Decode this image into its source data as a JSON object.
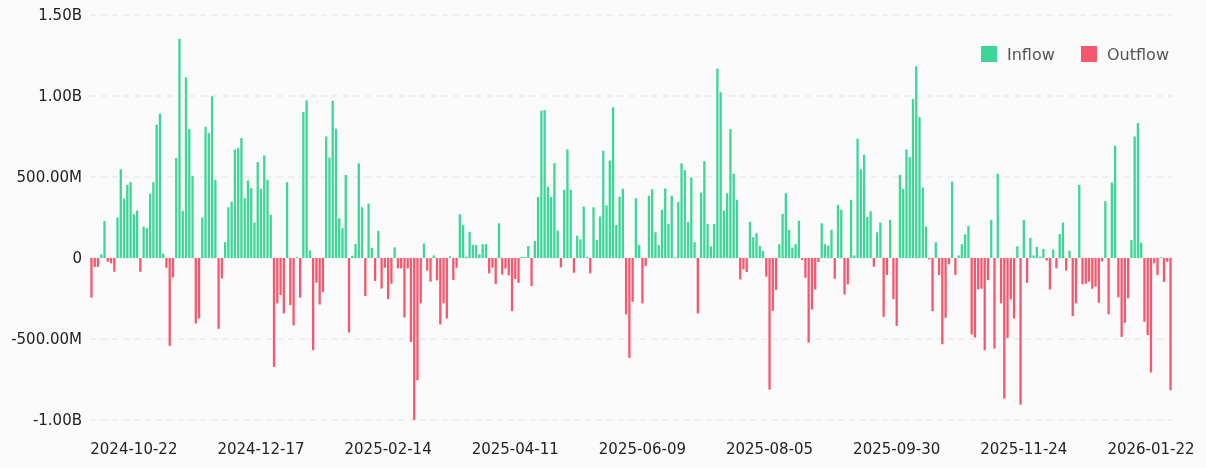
{
  "chart_data": {
    "type": "bar",
    "grid": "y",
    "legend": "top right",
    "ylim": [
      -1000000000.0,
      1500000000.0
    ],
    "yticks": [
      {
        "value": -1000000000.0,
        "label": "-1.00B"
      },
      {
        "value": -500000000.0,
        "label": "-500.00M"
      },
      {
        "value": 0,
        "label": "0"
      },
      {
        "value": 500000000.0,
        "label": "500.00M"
      },
      {
        "value": 1000000000.0,
        "label": "1.00B"
      },
      {
        "value": 1500000000.0,
        "label": "1.50B"
      }
    ],
    "categories": [
      null,
      null,
      null,
      null,
      null,
      null,
      null,
      null,
      null,
      null,
      null,
      null,
      null,
      "2024-10-22",
      null,
      null,
      null,
      null,
      null,
      null,
      null,
      null,
      null,
      null,
      null,
      null,
      null,
      null,
      null,
      null,
      null,
      null,
      null,
      null,
      null,
      null,
      null,
      null,
      null,
      null,
      null,
      null,
      null,
      null,
      null,
      null,
      null,
      null,
      null,
      null,
      null,
      null,
      "2024-12-17",
      null,
      null,
      null,
      null,
      null,
      null,
      null,
      null,
      null,
      null,
      null,
      null,
      null,
      null,
      null,
      null,
      null,
      null,
      null,
      null,
      null,
      null,
      null,
      null,
      null,
      null,
      null,
      null,
      null,
      null,
      null,
      null,
      null,
      null,
      null,
      null,
      null,
      null,
      "2025-02-14",
      null,
      null,
      null,
      null,
      null,
      null,
      null,
      null,
      null,
      null,
      null,
      null,
      null,
      null,
      null,
      null,
      null,
      null,
      null,
      null,
      null,
      null,
      null,
      null,
      null,
      null,
      null,
      null,
      null,
      null,
      null,
      null,
      null,
      null,
      null,
      null,
      null,
      null,
      "2025-04-11",
      null,
      null,
      null,
      null,
      null,
      null,
      null,
      null,
      null,
      null,
      null,
      null,
      null,
      null,
      null,
      null,
      null,
      null,
      null,
      null,
      null,
      null,
      null,
      null,
      null,
      null,
      null,
      null,
      null,
      null,
      null,
      null,
      null,
      null,
      null,
      null,
      null,
      null,
      "2025-06-09",
      null,
      null,
      null,
      null,
      null,
      null,
      null,
      null,
      null,
      null,
      null,
      null,
      null,
      null,
      null,
      null,
      null,
      null,
      null,
      null,
      null,
      null,
      null,
      null,
      null,
      null,
      null,
      null,
      null,
      null,
      null,
      null,
      null,
      null,
      null,
      null,
      null,
      null,
      "2025-08-05",
      null,
      null,
      null,
      null,
      null,
      null,
      null,
      null,
      null,
      null,
      null,
      null,
      null,
      null,
      null,
      null,
      null,
      null,
      null,
      null,
      null,
      null,
      null,
      null,
      null,
      null,
      null,
      null,
      null,
      null,
      null,
      null,
      null,
      null,
      null,
      null,
      null,
      null,
      "2025-09-30",
      null,
      null,
      null,
      null,
      null,
      null,
      null,
      null,
      null,
      null,
      null,
      null,
      null,
      null,
      null,
      null,
      null,
      null,
      null,
      null,
      null,
      null,
      null,
      null,
      null,
      null,
      null,
      null,
      null,
      null,
      null,
      null,
      null,
      null,
      null,
      null,
      null,
      null,
      "2025-11-24",
      null,
      null,
      null,
      null,
      null,
      null,
      null,
      null,
      null,
      null,
      null,
      null,
      null,
      null,
      null,
      null,
      null,
      null,
      null,
      null,
      null,
      null,
      null,
      null,
      null,
      null,
      null,
      null,
      null,
      null,
      null,
      null,
      null,
      null,
      null,
      null,
      null,
      null,
      "2026-01-22",
      null,
      null,
      null,
      null,
      null,
      null
    ],
    "series": [
      {
        "name": "Inflow",
        "color": "#3dd598",
        "values": [
          null,
          null,
          null,
          23000000.0,
          229000000.0,
          null,
          null,
          null,
          250000000.0,
          548000000.0,
          367000000.0,
          452000000.0,
          468000000.0,
          270000000.0,
          293000000.0,
          null,
          194000000.0,
          184000000.0,
          396000000.0,
          468000000.0,
          823000000.0,
          891000000.0,
          27000000.0,
          null,
          null,
          null,
          617000000.0,
          1353000000.0,
          291000000.0,
          1115000000.0,
          796000000.0,
          505000000.0,
          null,
          null,
          250000000.0,
          810000000.0,
          771000000.0,
          998000000.0,
          482000000.0,
          null,
          null,
          97000000.0,
          313000000.0,
          348000000.0,
          670000000.0,
          678000000.0,
          740000000.0,
          369000000.0,
          478000000.0,
          431000000.0,
          219000000.0,
          592000000.0,
          427000000.0,
          633000000.0,
          482000000.0,
          266000000.0,
          null,
          null,
          null,
          null,
          468000000.0,
          null,
          null,
          6000000.0,
          null,
          901000000.0,
          973000000.0,
          47000000.0,
          null,
          null,
          null,
          null,
          750000000.0,
          620000000.0,
          971000000.0,
          798000000.0,
          245000000.0,
          184000000.0,
          513000000.0,
          null,
          14000000.0,
          87000000.0,
          584000000.0,
          313000000.0,
          null,
          336000000.0,
          62000000.0,
          null,
          167000000.0,
          null,
          null,
          null,
          null,
          66000000.0,
          null,
          null,
          null,
          null,
          null,
          null,
          null,
          null,
          89000000.0,
          null,
          null,
          16000000.0,
          null,
          null,
          null,
          null,
          10000000.0,
          null,
          null,
          270000000.0,
          204000000.0,
          8000000.0,
          161000000.0,
          80000000.0,
          80000000.0,
          23000000.0,
          85000000.0,
          85000000.0,
          null,
          null,
          null,
          214000000.0,
          null,
          null,
          null,
          null,
          null,
          null,
          6000000.0,
          6000000.0,
          74000000.0,
          null,
          105000000.0,
          377000000.0,
          909000000.0,
          913000000.0,
          439000000.0,
          377000000.0,
          586000000.0,
          169000000.0,
          null,
          421000000.0,
          670000000.0,
          421000000.0,
          null,
          138000000.0,
          115000000.0,
          318000000.0,
          6000000.0,
          null,
          313000000.0,
          111000000.0,
          256000000.0,
          662000000.0,
          324000000.0,
          602000000.0,
          930000000.0,
          204000000.0,
          379000000.0,
          427000000.0,
          null,
          null,
          null,
          369000000.0,
          80000000.0,
          null,
          null,
          384000000.0,
          425000000.0,
          159000000.0,
          80000000.0,
          297000000.0,
          429000000.0,
          210000000.0,
          384000000.0,
          4000000.0,
          346000000.0,
          584000000.0,
          542000000.0,
          223000000.0,
          497000000.0,
          97000000.0,
          null,
          404000000.0,
          598000000.0,
          210000000.0,
          72000000.0,
          210000000.0,
          1169000000.0,
          1023000000.0,
          293000000.0,
          400000000.0,
          796000000.0,
          520000000.0,
          359000000.0,
          null,
          null,
          null,
          223000000.0,
          128000000.0,
          153000000.0,
          74000000.0,
          43000000.0,
          null,
          null,
          null,
          null,
          85000000.0,
          272000000.0,
          400000000.0,
          173000000.0,
          64000000.0,
          85000000.0,
          229000000.0,
          null,
          null,
          null,
          null,
          null,
          null,
          214000000.0,
          85000000.0,
          76000000.0,
          175000000.0,
          null,
          328000000.0,
          297000000.0,
          null,
          null,
          359000000.0,
          16000000.0,
          736000000.0,
          548000000.0,
          637000000.0,
          254000000.0,
          289000000.0,
          null,
          159000000.0,
          219000000.0,
          null,
          null,
          235000000.0,
          null,
          null,
          513000000.0,
          427000000.0,
          670000000.0,
          623000000.0,
          981000000.0,
          1184000000.0,
          870000000.0,
          435000000.0,
          194000000.0,
          null,
          null,
          97000000.0,
          null,
          null,
          null,
          null,
          472000000.0,
          null,
          16000000.0,
          85000000.0,
          146000000.0,
          198000000.0,
          null,
          null,
          null,
          null,
          null,
          null,
          235000000.0,
          null,
          520000000.0,
          null,
          null,
          null,
          null,
          null,
          72000000.0,
          null,
          235000000.0,
          null,
          124000000.0,
          16000000.0,
          68000000.0,
          8000000.0,
          56000000.0,
          null,
          null,
          52000000.0,
          null,
          148000000.0,
          219000000.0,
          null,
          45000000.0,
          null,
          null,
          452000000.0,
          null,
          null,
          null,
          null,
          null,
          null,
          null,
          351000000.0,
          null,
          466000000.0,
          693000000.0,
          null,
          null,
          null,
          null,
          111000000.0,
          750000000.0,
          833000000.0,
          95000000.0,
          null,
          null,
          null,
          null,
          null,
          4000000.0,
          null,
          null,
          null
        ]
      },
      {
        "name": "Outflow",
        "color": "#f5586e",
        "values": [
          -245000000.0,
          -55000000.0,
          -55000000.0,
          null,
          null,
          -23000000.0,
          -33000000.0,
          -85000000.0,
          null,
          null,
          null,
          null,
          null,
          null,
          null,
          -85000000.0,
          null,
          null,
          null,
          null,
          null,
          null,
          null,
          -60000000.0,
          -542000000.0,
          -120000000.0,
          null,
          null,
          null,
          null,
          null,
          null,
          -404000000.0,
          -373000000.0,
          null,
          null,
          null,
          null,
          null,
          -437000000.0,
          -126000000.0,
          null,
          null,
          null,
          null,
          null,
          null,
          null,
          null,
          null,
          null,
          null,
          null,
          null,
          null,
          null,
          -672000000.0,
          -280000000.0,
          -229000000.0,
          -342000000.0,
          null,
          -291000000.0,
          -416000000.0,
          null,
          -245000000.0,
          null,
          null,
          null,
          -569000000.0,
          -153000000.0,
          -287000000.0,
          -210000000.0,
          null,
          null,
          null,
          null,
          null,
          null,
          null,
          -460000000.0,
          null,
          null,
          null,
          null,
          -235000000.0,
          null,
          null,
          -142000000.0,
          null,
          -188000000.0,
          -60000000.0,
          -254000000.0,
          -159000000.0,
          null,
          -64000000.0,
          -64000000.0,
          -367000000.0,
          -64000000.0,
          -518000000.0,
          -1000000000.0,
          -755000000.0,
          -280000000.0,
          null,
          -78000000.0,
          -146000000.0,
          null,
          -138000000.0,
          -410000000.0,
          -280000000.0,
          -373000000.0,
          null,
          -136000000.0,
          -60000000.0,
          null,
          null,
          null,
          null,
          null,
          null,
          null,
          null,
          null,
          -95000000.0,
          -60000000.0,
          -161000000.0,
          null,
          -103000000.0,
          -66000000.0,
          -107000000.0,
          -328000000.0,
          -130000000.0,
          -153000000.0,
          null,
          null,
          null,
          -173000000.0,
          null,
          null,
          null,
          null,
          null,
          null,
          null,
          null,
          -58000000.0,
          null,
          null,
          null,
          -91000000.0,
          null,
          null,
          null,
          null,
          -95000000.0,
          null,
          null,
          null,
          null,
          null,
          null,
          null,
          null,
          null,
          null,
          -348000000.0,
          -616000000.0,
          -270000000.0,
          null,
          null,
          -280000000.0,
          -49000000.0,
          null,
          null,
          null,
          null,
          null,
          null,
          null,
          null,
          null,
          null,
          null,
          null,
          null,
          null,
          null,
          -342000000.0,
          null,
          null,
          null,
          null,
          null,
          null,
          null,
          null,
          null,
          null,
          null,
          null,
          -132000000.0,
          -70000000.0,
          -87000000.0,
          null,
          null,
          null,
          null,
          null,
          -115000000.0,
          -812000000.0,
          -326000000.0,
          -198000000.0,
          null,
          null,
          null,
          null,
          null,
          null,
          null,
          -12000000.0,
          -122000000.0,
          -522000000.0,
          -318000000.0,
          -194000000.0,
          -25000000.0,
          null,
          null,
          null,
          null,
          -128000000.0,
          null,
          null,
          -225000000.0,
          -163000000.0,
          null,
          null,
          null,
          null,
          null,
          null,
          null,
          -54000000.0,
          null,
          null,
          -363000000.0,
          -105000000.0,
          null,
          -254000000.0,
          -419000000.0,
          null,
          null,
          null,
          null,
          null,
          null,
          null,
          null,
          null,
          -8000000.0,
          -328000000.0,
          null,
          -105000000.0,
          -532000000.0,
          -369000000.0,
          -39000000.0,
          null,
          -105000000.0,
          null,
          null,
          null,
          null,
          -472000000.0,
          -491000000.0,
          -194000000.0,
          -190000000.0,
          -569000000.0,
          -136000000.0,
          null,
          -559000000.0,
          null,
          -280000000.0,
          -868000000.0,
          -493000000.0,
          -256000000.0,
          -373000000.0,
          null,
          -905000000.0,
          null,
          -153000000.0,
          null,
          null,
          null,
          null,
          null,
          -16000000.0,
          -194000000.0,
          null,
          -64000000.0,
          null,
          null,
          -78000000.0,
          null,
          -359000000.0,
          -280000000.0,
          null,
          -163000000.0,
          -159000000.0,
          -146000000.0,
          -190000000.0,
          -177000000.0,
          -276000000.0,
          -21000000.0,
          null,
          -348000000.0,
          null,
          null,
          -243000000.0,
          -487000000.0,
          -400000000.0,
          -249000000.0,
          null,
          null,
          null,
          null,
          -394000000.0,
          -476000000.0,
          -707000000.0,
          -33000000.0,
          -105000000.0,
          null,
          -148000000.0,
          -23000000.0,
          -816000000.0
        ]
      }
    ]
  }
}
